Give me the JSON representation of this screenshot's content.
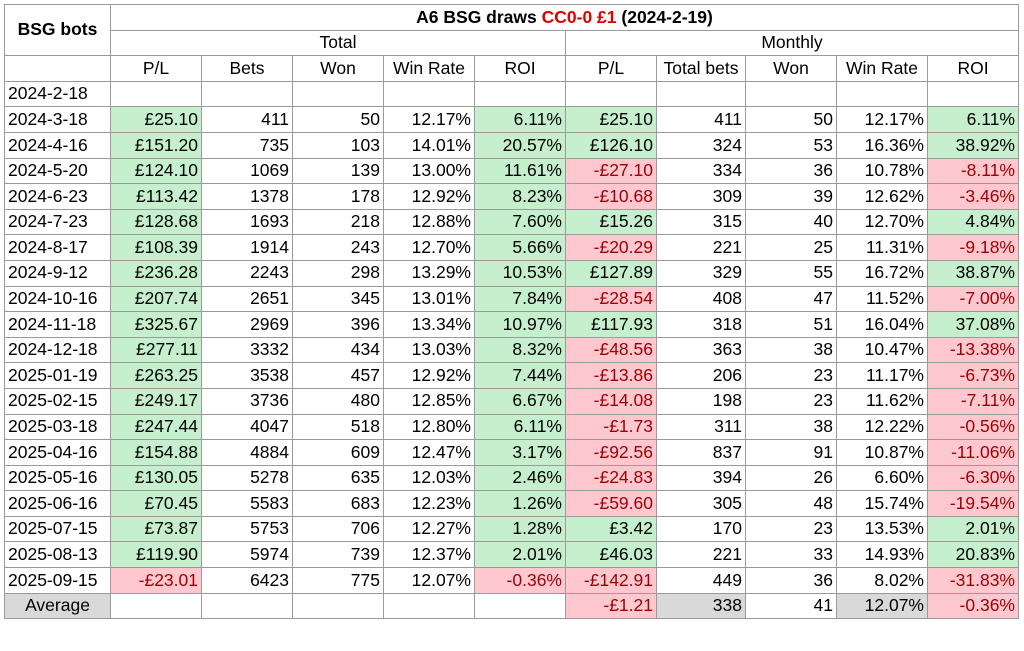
{
  "title": {
    "prefix": "A6 BSG draws ",
    "highlight": "CC0-0 £1",
    "suffix": " (2024-2-19)"
  },
  "corner_label": "BSG bots",
  "groups": {
    "total": "Total",
    "monthly": "Monthly"
  },
  "columns": {
    "total": [
      "P/L",
      "Bets",
      "Won",
      "Win Rate",
      "ROI"
    ],
    "monthly": [
      "P/L",
      "Total bets",
      "Won",
      "Win Rate",
      "ROI"
    ]
  },
  "colors": {
    "positive_fill": "#c6efce",
    "negative_fill": "#ffc7ce",
    "negative_text": "#9c0006",
    "highlight_text": "#e00000"
  },
  "rows": [
    {
      "date": "2024-2-18",
      "t_pl": "",
      "t_pl_s": "",
      "t_bets": "",
      "t_won": "",
      "t_wr": "",
      "t_roi": "",
      "t_roi_s": "",
      "m_pl": "",
      "m_pl_s": "",
      "m_bets": "",
      "m_won": "",
      "m_wr": "",
      "m_roi": "",
      "m_roi_s": ""
    },
    {
      "date": "2024-3-18",
      "t_pl": "£25.10",
      "t_pl_s": "pos",
      "t_bets": "411",
      "t_won": "50",
      "t_wr": "12.17%",
      "t_roi": "6.11%",
      "t_roi_s": "pos",
      "m_pl": "£25.10",
      "m_pl_s": "pos",
      "m_bets": "411",
      "m_won": "50",
      "m_wr": "12.17%",
      "m_roi": "6.11%",
      "m_roi_s": "pos"
    },
    {
      "date": "2024-4-16",
      "t_pl": "£151.20",
      "t_pl_s": "pos",
      "t_bets": "735",
      "t_won": "103",
      "t_wr": "14.01%",
      "t_roi": "20.57%",
      "t_roi_s": "pos",
      "m_pl": "£126.10",
      "m_pl_s": "pos",
      "m_bets": "324",
      "m_won": "53",
      "m_wr": "16.36%",
      "m_roi": "38.92%",
      "m_roi_s": "pos"
    },
    {
      "date": "2024-5-20",
      "t_pl": "£124.10",
      "t_pl_s": "pos",
      "t_bets": "1069",
      "t_won": "139",
      "t_wr": "13.00%",
      "t_roi": "11.61%",
      "t_roi_s": "pos",
      "m_pl": "-£27.10",
      "m_pl_s": "neg",
      "m_bets": "334",
      "m_won": "36",
      "m_wr": "10.78%",
      "m_roi": "-8.11%",
      "m_roi_s": "neg"
    },
    {
      "date": "2024-6-23",
      "t_pl": "£113.42",
      "t_pl_s": "pos",
      "t_bets": "1378",
      "t_won": "178",
      "t_wr": "12.92%",
      "t_roi": "8.23%",
      "t_roi_s": "pos",
      "m_pl": "-£10.68",
      "m_pl_s": "neg",
      "m_bets": "309",
      "m_won": "39",
      "m_wr": "12.62%",
      "m_roi": "-3.46%",
      "m_roi_s": "neg"
    },
    {
      "date": "2024-7-23",
      "t_pl": "£128.68",
      "t_pl_s": "pos",
      "t_bets": "1693",
      "t_won": "218",
      "t_wr": "12.88%",
      "t_roi": "7.60%",
      "t_roi_s": "pos",
      "m_pl": "£15.26",
      "m_pl_s": "pos",
      "m_bets": "315",
      "m_won": "40",
      "m_wr": "12.70%",
      "m_roi": "4.84%",
      "m_roi_s": "pos"
    },
    {
      "date": "2024-8-17",
      "t_pl": "£108.39",
      "t_pl_s": "pos",
      "t_bets": "1914",
      "t_won": "243",
      "t_wr": "12.70%",
      "t_roi": "5.66%",
      "t_roi_s": "pos",
      "m_pl": "-£20.29",
      "m_pl_s": "neg",
      "m_bets": "221",
      "m_won": "25",
      "m_wr": "11.31%",
      "m_roi": "-9.18%",
      "m_roi_s": "neg"
    },
    {
      "date": "2024-9-12",
      "t_pl": "£236.28",
      "t_pl_s": "pos",
      "t_bets": "2243",
      "t_won": "298",
      "t_wr": "13.29%",
      "t_roi": "10.53%",
      "t_roi_s": "pos",
      "m_pl": "£127.89",
      "m_pl_s": "pos",
      "m_bets": "329",
      "m_won": "55",
      "m_wr": "16.72%",
      "m_roi": "38.87%",
      "m_roi_s": "pos"
    },
    {
      "date": "2024-10-16",
      "t_pl": "£207.74",
      "t_pl_s": "pos",
      "t_bets": "2651",
      "t_won": "345",
      "t_wr": "13.01%",
      "t_roi": "7.84%",
      "t_roi_s": "pos",
      "m_pl": "-£28.54",
      "m_pl_s": "neg",
      "m_bets": "408",
      "m_won": "47",
      "m_wr": "11.52%",
      "m_roi": "-7.00%",
      "m_roi_s": "neg"
    },
    {
      "date": "2024-11-18",
      "t_pl": "£325.67",
      "t_pl_s": "pos",
      "t_bets": "2969",
      "t_won": "396",
      "t_wr": "13.34%",
      "t_roi": "10.97%",
      "t_roi_s": "pos",
      "m_pl": "£117.93",
      "m_pl_s": "pos",
      "m_bets": "318",
      "m_won": "51",
      "m_wr": "16.04%",
      "m_roi": "37.08%",
      "m_roi_s": "pos"
    },
    {
      "date": "2024-12-18",
      "t_pl": "£277.11",
      "t_pl_s": "pos",
      "t_bets": "3332",
      "t_won": "434",
      "t_wr": "13.03%",
      "t_roi": "8.32%",
      "t_roi_s": "pos",
      "m_pl": "-£48.56",
      "m_pl_s": "neg",
      "m_bets": "363",
      "m_won": "38",
      "m_wr": "10.47%",
      "m_roi": "-13.38%",
      "m_roi_s": "neg"
    },
    {
      "date": "2025-01-19",
      "t_pl": "£263.25",
      "t_pl_s": "pos",
      "t_bets": "3538",
      "t_won": "457",
      "t_wr": "12.92%",
      "t_roi": "7.44%",
      "t_roi_s": "pos",
      "m_pl": "-£13.86",
      "m_pl_s": "neg",
      "m_bets": "206",
      "m_won": "23",
      "m_wr": "11.17%",
      "m_roi": "-6.73%",
      "m_roi_s": "neg"
    },
    {
      "date": "2025-02-15",
      "t_pl": "£249.17",
      "t_pl_s": "pos",
      "t_bets": "3736",
      "t_won": "480",
      "t_wr": "12.85%",
      "t_roi": "6.67%",
      "t_roi_s": "pos",
      "m_pl": "-£14.08",
      "m_pl_s": "neg",
      "m_bets": "198",
      "m_won": "23",
      "m_wr": "11.62%",
      "m_roi": "-7.11%",
      "m_roi_s": "neg"
    },
    {
      "date": "2025-03-18",
      "t_pl": "£247.44",
      "t_pl_s": "pos",
      "t_bets": "4047",
      "t_won": "518",
      "t_wr": "12.80%",
      "t_roi": "6.11%",
      "t_roi_s": "pos",
      "m_pl": "-£1.73",
      "m_pl_s": "neg",
      "m_bets": "311",
      "m_won": "38",
      "m_wr": "12.22%",
      "m_roi": "-0.56%",
      "m_roi_s": "neg"
    },
    {
      "date": "2025-04-16",
      "t_pl": "£154.88",
      "t_pl_s": "pos",
      "t_bets": "4884",
      "t_won": "609",
      "t_wr": "12.47%",
      "t_roi": "3.17%",
      "t_roi_s": "pos",
      "m_pl": "-£92.56",
      "m_pl_s": "neg",
      "m_bets": "837",
      "m_won": "91",
      "m_wr": "10.87%",
      "m_roi": "-11.06%",
      "m_roi_s": "neg"
    },
    {
      "date": "2025-05-16",
      "t_pl": "£130.05",
      "t_pl_s": "pos",
      "t_bets": "5278",
      "t_won": "635",
      "t_wr": "12.03%",
      "t_roi": "2.46%",
      "t_roi_s": "pos",
      "m_pl": "-£24.83",
      "m_pl_s": "neg",
      "m_bets": "394",
      "m_won": "26",
      "m_wr": "6.60%",
      "m_roi": "-6.30%",
      "m_roi_s": "neg"
    },
    {
      "date": "2025-06-16",
      "t_pl": "£70.45",
      "t_pl_s": "pos",
      "t_bets": "5583",
      "t_won": "683",
      "t_wr": "12.23%",
      "t_roi": "1.26%",
      "t_roi_s": "pos",
      "m_pl": "-£59.60",
      "m_pl_s": "neg",
      "m_bets": "305",
      "m_won": "48",
      "m_wr": "15.74%",
      "m_roi": "-19.54%",
      "m_roi_s": "neg"
    },
    {
      "date": "2025-07-15",
      "t_pl": "£73.87",
      "t_pl_s": "pos",
      "t_bets": "5753",
      "t_won": "706",
      "t_wr": "12.27%",
      "t_roi": "1.28%",
      "t_roi_s": "pos",
      "m_pl": "£3.42",
      "m_pl_s": "pos",
      "m_bets": "170",
      "m_won": "23",
      "m_wr": "13.53%",
      "m_roi": "2.01%",
      "m_roi_s": "pos"
    },
    {
      "date": "2025-08-13",
      "t_pl": "£119.90",
      "t_pl_s": "pos",
      "t_bets": "5974",
      "t_won": "739",
      "t_wr": "12.37%",
      "t_roi": "2.01%",
      "t_roi_s": "pos",
      "m_pl": "£46.03",
      "m_pl_s": "pos",
      "m_bets": "221",
      "m_won": "33",
      "m_wr": "14.93%",
      "m_roi": "20.83%",
      "m_roi_s": "pos"
    },
    {
      "date": "2025-09-15",
      "t_pl": "-£23.01",
      "t_pl_s": "neg",
      "t_bets": "6423",
      "t_won": "775",
      "t_wr": "12.07%",
      "t_roi": "-0.36%",
      "t_roi_s": "neg",
      "m_pl": "-£142.91",
      "m_pl_s": "neg",
      "m_bets": "449",
      "m_won": "36",
      "m_wr": "8.02%",
      "m_roi": "-31.83%",
      "m_roi_s": "neg"
    }
  ],
  "average": {
    "label": "Average",
    "m_pl": "-£1.21",
    "m_pl_s": "neg",
    "m_bets": "338",
    "m_won": "41",
    "m_wr": "12.07%",
    "m_roi": "-0.36%",
    "m_roi_s": "neg"
  }
}
